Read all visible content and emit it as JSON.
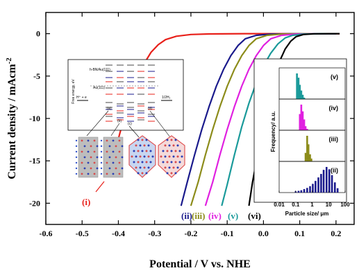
{
  "chart_data": [
    {
      "type": "line",
      "title": "",
      "xlabel": "Potential / V vs. NHE",
      "ylabel": "Current density / mAcm",
      "ylabel_superscript": "-2",
      "xlim": [
        -0.6,
        0.25
      ],
      "ylim": [
        -22.5,
        2.5
      ],
      "xticks": [
        -0.6,
        -0.5,
        -0.4,
        -0.3,
        -0.2,
        -0.1,
        0.0,
        0.1,
        0.2
      ],
      "xtick_labels": [
        "-0.6",
        "-0.5",
        "-0.4",
        "-0.3",
        "-0.2",
        "-0.1",
        "0.0",
        "0.1",
        "0.2"
      ],
      "yticks": [
        0,
        -5,
        -10,
        -15,
        -20
      ],
      "ytick_labels": [
        "0",
        "-5",
        "-10",
        "-15",
        "-20"
      ],
      "grid": false,
      "series": [
        {
          "name": "(i)",
          "color": "#e8201a",
          "x": [
            -0.41,
            -0.39,
            -0.37,
            -0.35,
            -0.33,
            -0.31,
            -0.29,
            -0.27,
            -0.24,
            -0.2,
            -0.15,
            -0.05,
            0.05,
            0.15,
            0.21
          ],
          "y": [
            -14.0,
            -10.8,
            -8.0,
            -5.6,
            -3.6,
            -2.2,
            -1.3,
            -0.7,
            -0.3,
            -0.1,
            -0.03,
            0,
            0,
            0,
            0
          ]
        },
        {
          "name": "(ii)",
          "color": "#1a1a8c",
          "x": [
            -0.227,
            -0.21,
            -0.19,
            -0.17,
            -0.15,
            -0.13,
            -0.11,
            -0.09,
            -0.07,
            -0.05,
            -0.02,
            0.02,
            0.1,
            0.2
          ],
          "y": [
            -20.3,
            -17.5,
            -14.3,
            -11.3,
            -8.6,
            -6.2,
            -4.2,
            -2.6,
            -1.4,
            -0.6,
            -0.2,
            -0.05,
            0,
            0
          ]
        },
        {
          "name": "(iii)",
          "color": "#8c8c1a",
          "x": [
            -0.2,
            -0.18,
            -0.16,
            -0.14,
            -0.12,
            -0.1,
            -0.08,
            -0.06,
            -0.04,
            -0.02,
            0.01,
            0.05,
            0.12,
            0.2
          ],
          "y": [
            -20.3,
            -17.5,
            -14.3,
            -11.3,
            -8.6,
            -6.2,
            -4.2,
            -2.6,
            -1.4,
            -0.6,
            -0.2,
            -0.05,
            0,
            0
          ]
        },
        {
          "name": "(iv)",
          "color": "#e020e0",
          "x": [
            -0.16,
            -0.14,
            -0.12,
            -0.1,
            -0.08,
            -0.06,
            -0.04,
            -0.02,
            0.0,
            0.02,
            0.05,
            0.09,
            0.15,
            0.2
          ],
          "y": [
            -20.3,
            -17.5,
            -14.3,
            -11.3,
            -8.6,
            -6.2,
            -4.2,
            -2.6,
            -1.4,
            -0.6,
            -0.2,
            -0.05,
            0,
            0
          ]
        },
        {
          "name": "(v)",
          "color": "#1a9a9a",
          "x": [
            -0.115,
            -0.1,
            -0.08,
            -0.06,
            -0.04,
            -0.02,
            0.0,
            0.02,
            0.04,
            0.06,
            0.08,
            0.11,
            0.16,
            0.2
          ],
          "y": [
            -20.3,
            -17.8,
            -14.3,
            -11.0,
            -8.2,
            -5.8,
            -3.8,
            -2.3,
            -1.2,
            -0.5,
            -0.2,
            -0.05,
            0,
            0
          ]
        },
        {
          "name": "(vi)",
          "color": "#000000",
          "x": [
            -0.04,
            -0.03,
            -0.015,
            0.0,
            0.015,
            0.03,
            0.045,
            0.06,
            0.075,
            0.09,
            0.11,
            0.14,
            0.18,
            0.21
          ],
          "y": [
            -20.3,
            -17.5,
            -14.0,
            -10.6,
            -7.6,
            -5.1,
            -3.2,
            -1.8,
            -0.9,
            -0.35,
            -0.1,
            -0.02,
            0,
            0
          ]
        }
      ],
      "curve_labels": [
        {
          "text": "(i)",
          "color": "#e8201a"
        },
        {
          "text": "(ii)",
          "color": "#1a1a8c"
        },
        {
          "text": "(iii)",
          "color": "#8c8c1a"
        },
        {
          "text": "(iv)",
          "color": "#e020e0"
        },
        {
          "text": "(v)",
          "color": "#1a9a9a"
        },
        {
          "text": "(vi)",
          "color": "#000000"
        }
      ]
    },
    {
      "type": "bar",
      "title": "",
      "xlabel": "Particle size/ μm",
      "ylabel": "Frequency/ a.u.",
      "xscale": "log",
      "xlim": [
        0.01,
        100
      ],
      "xticks": [
        0.01,
        0.1,
        1,
        10,
        100
      ],
      "xtick_labels": [
        "0.01",
        "0.1",
        "1",
        "10",
        "100"
      ],
      "panels": [
        {
          "name": "(v)",
          "color": "#1a9a9a",
          "x": [
            0.12,
            0.15,
            0.18,
            0.22,
            0.27,
            0.33
          ],
          "values": [
            0.9,
            0.75,
            0.5,
            0.3,
            0.15,
            0.05
          ]
        },
        {
          "name": "(iv)",
          "color": "#e020e0",
          "x": [
            0.18,
            0.22,
            0.27,
            0.33,
            0.4,
            0.5
          ],
          "values": [
            0.6,
            0.95,
            0.7,
            0.4,
            0.15,
            0.05
          ]
        },
        {
          "name": "(iii)",
          "color": "#8c8c1a",
          "x": [
            0.4,
            0.5,
            0.6,
            0.75,
            0.9
          ],
          "values": [
            0.3,
            0.9,
            0.6,
            0.25,
            0.1
          ]
        },
        {
          "name": "(ii)",
          "color": "#1a1a8c",
          "x": [
            0.1,
            0.15,
            0.22,
            0.33,
            0.5,
            0.75,
            1.1,
            1.6,
            2.4,
            3.5,
            5,
            7.5,
            11,
            16,
            24,
            35
          ],
          "values": [
            0.04,
            0.06,
            0.08,
            0.12,
            0.16,
            0.22,
            0.3,
            0.4,
            0.52,
            0.64,
            0.78,
            0.88,
            0.8,
            0.6,
            0.35,
            0.15
          ]
        }
      ]
    }
  ],
  "inset_energy_diagram": {
    "ylabel": "Free energy, eV",
    "labels": [
      "h-BN/Au(111)",
      "Au(111)",
      "H⁺ + e",
      "1/2H₂",
      "(a)",
      "(b)",
      "(c)",
      "(d)"
    ]
  },
  "colors": {
    "axis": "#000000",
    "background": "#ffffff"
  }
}
